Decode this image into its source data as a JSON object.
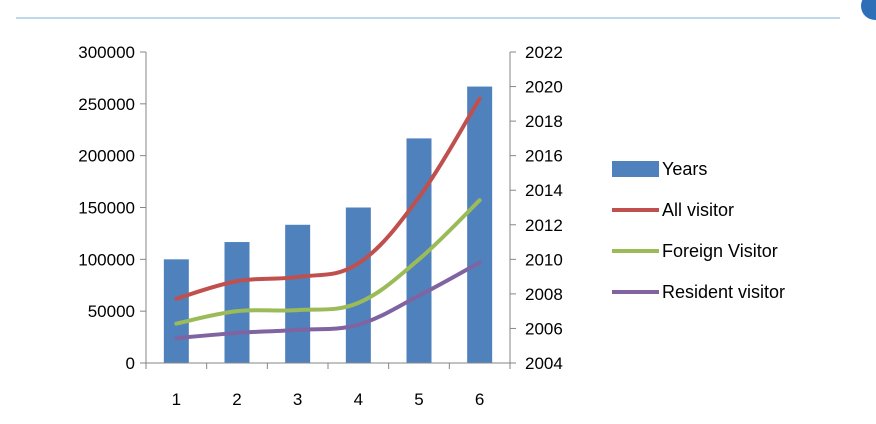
{
  "colors": {
    "years": "#4f81bd",
    "all_visitor": "#c0504d",
    "foreign_visitor": "#9bbb59",
    "resident_visitor": "#8064a2",
    "axis": "#868686",
    "top_rule": "#7fb2d4",
    "corner_badge": "#2f6fb8"
  },
  "chart_data": {
    "type": "bar",
    "title": "",
    "xlabel": "",
    "ylabel": "",
    "categories": [
      "1",
      "2",
      "3",
      "4",
      "5",
      "6"
    ],
    "y_primary": {
      "ylim": [
        0,
        300000
      ],
      "ticks": [
        "0",
        "50000",
        "100000",
        "150000",
        "200000",
        "250000",
        "300000"
      ]
    },
    "y_secondary": {
      "ylim": [
        2004,
        2022
      ],
      "ticks": [
        "2004",
        "2006",
        "2008",
        "2010",
        "2012",
        "2014",
        "2016",
        "2018",
        "2020",
        "2022"
      ]
    },
    "grid": false,
    "legend_position": "right",
    "series": [
      {
        "name": "Years",
        "kind": "bar",
        "axis": "secondary",
        "values": [
          2010,
          2011,
          2012,
          2013,
          2017,
          2020
        ],
        "color_key": "years"
      },
      {
        "name": "All visitor",
        "kind": "line",
        "axis": "primary",
        "values": [
          62000,
          79000,
          83000,
          96000,
          160000,
          255000
        ],
        "color_key": "all_visitor"
      },
      {
        "name": "Foreign Visitor",
        "kind": "line",
        "axis": "primary",
        "values": [
          38000,
          50000,
          51000,
          58000,
          100000,
          157000
        ],
        "color_key": "foreign_visitor"
      },
      {
        "name": "Resident visitor",
        "kind": "line",
        "axis": "primary",
        "values": [
          24000,
          29000,
          32000,
          37000,
          65000,
          97000
        ],
        "color_key": "resident_visitor"
      }
    ]
  }
}
